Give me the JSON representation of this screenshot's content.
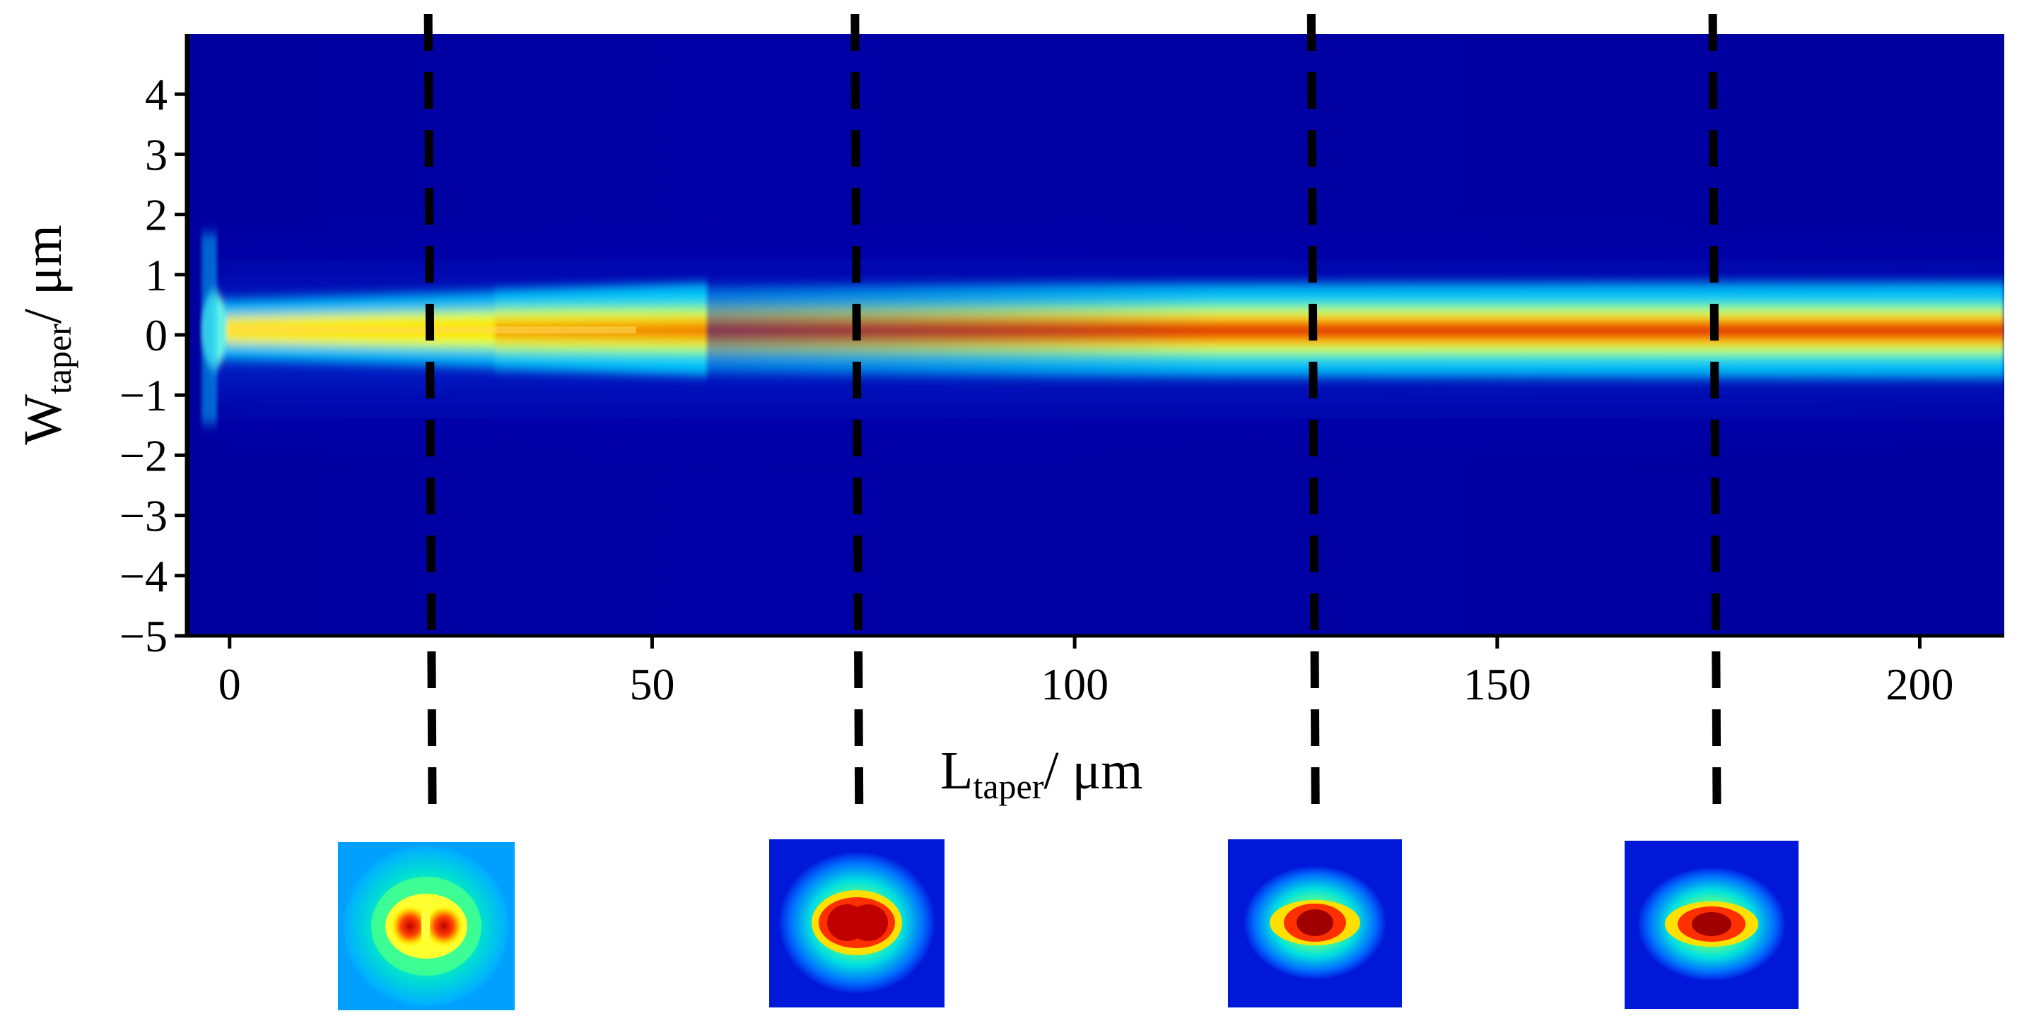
{
  "chart_data": {
    "type": "heatmap",
    "title": "",
    "xlabel": {
      "main": "L",
      "sub": "taper",
      "unit": "/ μm"
    },
    "ylabel": {
      "main": "W",
      "sub": "taper",
      "unit": "/ μm"
    },
    "xlim": [
      -5,
      210
    ],
    "ylim": [
      -5,
      5
    ],
    "x_ticks": [
      0,
      50,
      100,
      150,
      200
    ],
    "x_tick_labels": [
      "0",
      "50",
      "100",
      "150",
      "200"
    ],
    "y_ticks": [
      4,
      3,
      2,
      1,
      0,
      -1,
      -2,
      -3,
      -4,
      -5
    ],
    "y_tick_labels": [
      "4",
      "3",
      "2",
      "1",
      "0",
      "−1",
      "−2",
      "−3",
      "−4",
      "−5"
    ],
    "colormap": "jet",
    "grid": false,
    "legend": "none",
    "beam": {
      "center_w_um": 0,
      "description": "Intensity concentrated near W = 0; double-lobed near the taper start, merging into a single high-intensity core by ~L = 50 μm"
    },
    "cut_positions_um": [
      23.5,
      74,
      128,
      175.5
    ],
    "mode_profiles": [
      {
        "x_um": 23.5,
        "shape": "double-lobe"
      },
      {
        "x_um": 74,
        "shape": "merging"
      },
      {
        "x_um": 128,
        "shape": "single-lobe"
      },
      {
        "x_um": 175.5,
        "shape": "single-lobe"
      }
    ]
  },
  "colors": {
    "background": "#00008f",
    "low": "#0000c8",
    "mid": "#00ffff",
    "high": "#ffff00",
    "peak": "#c00000",
    "dashed_line": "#000000"
  }
}
